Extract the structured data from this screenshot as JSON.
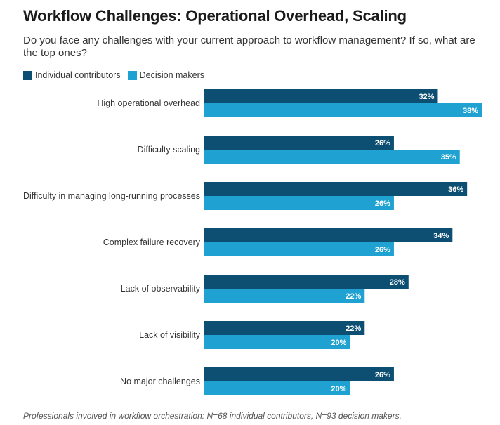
{
  "title": "Workflow Challenges: Operational Overhead, Scaling",
  "subtitle": "Do you face any challenges with your current approach to workflow management? If so, what are the top ones?",
  "footnote": "Professionals involved in workflow orchestration: N=68 individual contributors, N=93 decision makers.",
  "colors": {
    "series1": "#0d4f72",
    "series2": "#1fa2d1",
    "label_text": "#ffffff"
  },
  "chart_data": {
    "type": "bar",
    "orientation": "horizontal",
    "categories": [
      "High operational overhead",
      "Difficulty scaling",
      "Difficulty in managing long-running processes",
      "Complex failure recovery",
      "Lack of observability",
      "Lack of visibility",
      "No major challenges"
    ],
    "series": [
      {
        "name": "Individual contributors",
        "values": [
          32,
          26,
          36,
          34,
          28,
          22,
          26
        ],
        "color": "#0d4f72"
      },
      {
        "name": "Decision makers",
        "values": [
          38,
          35,
          26,
          26,
          22,
          20,
          20
        ],
        "color": "#1fa2d1"
      }
    ],
    "value_suffix": "%",
    "xlim": [
      0,
      38
    ],
    "grid": false,
    "legend_position": "top-left"
  }
}
